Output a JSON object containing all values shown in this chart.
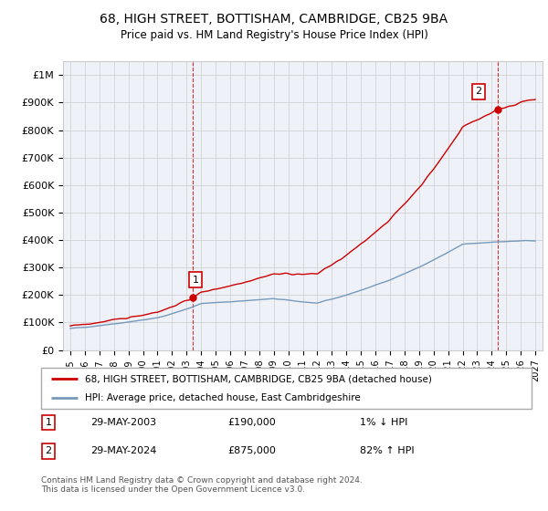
{
  "title": "68, HIGH STREET, BOTTISHAM, CAMBRIDGE, CB25 9BA",
  "subtitle": "Price paid vs. HM Land Registry's House Price Index (HPI)",
  "legend_line1": "68, HIGH STREET, BOTTISHAM, CAMBRIDGE, CB25 9BA (detached house)",
  "legend_line2": "HPI: Average price, detached house, East Cambridgeshire",
  "annotation1_label": "1",
  "annotation1_date": "29-MAY-2003",
  "annotation1_price": "£190,000",
  "annotation1_hpi": "1% ↓ HPI",
  "annotation2_label": "2",
  "annotation2_date": "29-MAY-2024",
  "annotation2_price": "£875,000",
  "annotation2_hpi": "82% ↑ HPI",
  "footer": "Contains HM Land Registry data © Crown copyright and database right 2024.\nThis data is licensed under the Open Government Licence v3.0.",
  "price_color": "#cc0000",
  "hpi_color": "#7799bb",
  "annotation_color": "#cc0000",
  "background_color": "#ffffff",
  "grid_color": "#cccccc",
  "plot_bg_color": "#eef2f8",
  "ylim": [
    0,
    1050000
  ],
  "yticks": [
    0,
    100000,
    200000,
    300000,
    400000,
    500000,
    600000,
    700000,
    800000,
    900000,
    1000000
  ],
  "ytick_labels": [
    "£0",
    "£100K",
    "£200K",
    "£300K",
    "£400K",
    "£500K",
    "£600K",
    "£700K",
    "£800K",
    "£900K",
    "£1M"
  ],
  "sale1_x": 2003.41,
  "sale1_y": 190000,
  "sale2_x": 2024.41,
  "sale2_y": 875000,
  "xlim": [
    1994.5,
    2027.5
  ],
  "xtick_years": [
    1995,
    1996,
    1997,
    1998,
    1999,
    2000,
    2001,
    2002,
    2003,
    2004,
    2005,
    2006,
    2007,
    2008,
    2009,
    2010,
    2011,
    2012,
    2013,
    2014,
    2015,
    2016,
    2017,
    2018,
    2019,
    2020,
    2021,
    2022,
    2023,
    2024,
    2025,
    2026,
    2027
  ]
}
